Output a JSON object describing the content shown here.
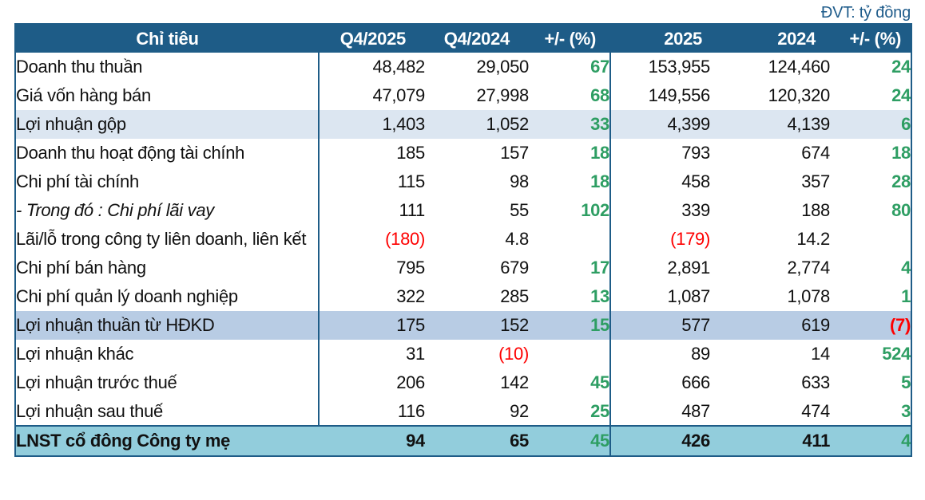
{
  "unit_note": "ĐVT: tỷ đồng",
  "colors": {
    "header_bg": "#1e5c87",
    "border": "#1e5c87",
    "row_highlight_light": "#dce6f1",
    "row_highlight_medium": "#b8cce4",
    "row_final": "#92cddc",
    "positive_green": "#2e9e63",
    "negative_red": "#fe0000",
    "header_text": "#ffffff",
    "unit_note_text": "#1f5c8b"
  },
  "chart_data": {
    "type": "table",
    "unit": "tỷ đồng",
    "columns": [
      "Chỉ tiêu",
      "Q4/2025",
      "Q4/2024",
      "+/- (%)",
      "2025",
      "2024",
      "+/- (%)"
    ],
    "rows": [
      {
        "label": "Doanh thu thuần",
        "values": [
          "48,482",
          "29,050",
          "67",
          "153,955",
          "124,460",
          "24"
        ],
        "style": "plain",
        "italic": false
      },
      {
        "label": "Giá vốn hàng bán",
        "values": [
          "47,079",
          "27,998",
          "68",
          "149,556",
          "120,320",
          "24"
        ],
        "style": "plain",
        "italic": false
      },
      {
        "label": "Lợi nhuận gộp",
        "values": [
          "1,403",
          "1,052",
          "33",
          "4,399",
          "4,139",
          "6"
        ],
        "style": "light",
        "italic": false
      },
      {
        "label": "Doanh thu hoạt động tài chính",
        "values": [
          "185",
          "157",
          "18",
          "793",
          "674",
          "18"
        ],
        "style": "plain",
        "italic": false
      },
      {
        "label": "Chi phí tài chính",
        "values": [
          "115",
          "98",
          "18",
          "458",
          "357",
          "28"
        ],
        "style": "plain",
        "italic": false
      },
      {
        "label": "- Trong đó : Chi phí lãi vay",
        "values": [
          "111",
          "55",
          "102",
          "339",
          "188",
          "80"
        ],
        "style": "plain",
        "italic": true
      },
      {
        "label": "Lãi/lỗ trong công ty liên doanh, liên kết",
        "values": [
          "(180)",
          "4.8",
          "",
          "(179)",
          "14.2",
          ""
        ],
        "style": "plain",
        "italic": false
      },
      {
        "label": "Chi phí bán hàng",
        "values": [
          "795",
          "679",
          "17",
          "2,891",
          "2,774",
          "4"
        ],
        "style": "plain",
        "italic": false
      },
      {
        "label": "Chi phí quản lý doanh nghiệp",
        "values": [
          "322",
          "285",
          "13",
          "1,087",
          "1,078",
          "1"
        ],
        "style": "plain",
        "italic": false
      },
      {
        "label": "Lợi nhuận thuần từ HĐKD",
        "values": [
          "175",
          "152",
          "15",
          "577",
          "619",
          "(7)"
        ],
        "style": "medium",
        "italic": false
      },
      {
        "label": "Lợi nhuận khác",
        "values": [
          "31",
          "(10)",
          "",
          "89",
          "14",
          "524"
        ],
        "style": "plain",
        "italic": false
      },
      {
        "label": "Lợi nhuận trước thuế",
        "values": [
          "206",
          "142",
          "45",
          "666",
          "633",
          "5"
        ],
        "style": "plain",
        "italic": false
      },
      {
        "label": "Lợi nhuận sau thuế",
        "values": [
          "116",
          "92",
          "25",
          "487",
          "474",
          "3"
        ],
        "style": "plain",
        "italic": false
      },
      {
        "label": "LNST cổ đông Công ty mẹ",
        "values": [
          "94",
          "65",
          "45",
          "426",
          "411",
          "4"
        ],
        "style": "final",
        "italic": false
      }
    ]
  }
}
